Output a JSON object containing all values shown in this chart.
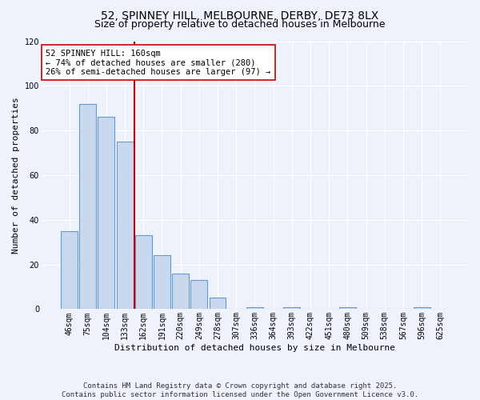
{
  "title": "52, SPINNEY HILL, MELBOURNE, DERBY, DE73 8LX",
  "subtitle": "Size of property relative to detached houses in Melbourne",
  "xlabel": "Distribution of detached houses by size in Melbourne",
  "ylabel": "Number of detached properties",
  "categories": [
    "46sqm",
    "75sqm",
    "104sqm",
    "133sqm",
    "162sqm",
    "191sqm",
    "220sqm",
    "249sqm",
    "278sqm",
    "307sqm",
    "336sqm",
    "364sqm",
    "393sqm",
    "422sqm",
    "451sqm",
    "480sqm",
    "509sqm",
    "538sqm",
    "567sqm",
    "596sqm",
    "625sqm"
  ],
  "values": [
    35,
    92,
    86,
    75,
    33,
    24,
    16,
    13,
    5,
    0,
    1,
    0,
    1,
    0,
    0,
    1,
    0,
    0,
    0,
    1,
    0
  ],
  "bar_color": "#c8d9ef",
  "bar_edge_color": "#6699cc",
  "vline_x_index": 4,
  "vline_color": "#cc0000",
  "annotation_line1": "52 SPINNEY HILL: 160sqm",
  "annotation_line2": "← 74% of detached houses are smaller (280)",
  "annotation_line3": "26% of semi-detached houses are larger (97) →",
  "ylim": [
    0,
    120
  ],
  "yticks": [
    0,
    20,
    40,
    60,
    80,
    100,
    120
  ],
  "footer1": "Contains HM Land Registry data © Crown copyright and database right 2025.",
  "footer2": "Contains public sector information licensed under the Open Government Licence v3.0.",
  "bg_color": "#eef2fb",
  "plot_bg_color": "#eef2fb",
  "grid_color": "#ffffff",
  "title_fontsize": 10,
  "subtitle_fontsize": 9,
  "axis_label_fontsize": 8,
  "tick_fontsize": 7,
  "footer_fontsize": 6.5,
  "annotation_fontsize": 7.5
}
